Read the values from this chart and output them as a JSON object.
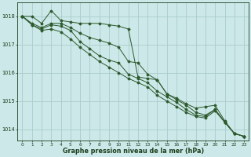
{
  "title": "Graphe pression niveau de la mer (hPa)",
  "background_color": "#cce8e8",
  "grid_color": "#aacccc",
  "line_color": "#2d5a2d",
  "text_color": "#1a3d1a",
  "xlim": [
    -0.5,
    23.5
  ],
  "ylim": [
    1013.6,
    1018.5
  ],
  "yticks": [
    1014,
    1015,
    1016,
    1017,
    1018
  ],
  "xticks": [
    0,
    1,
    2,
    3,
    4,
    5,
    6,
    7,
    8,
    9,
    10,
    11,
    12,
    13,
    14,
    15,
    16,
    17,
    18,
    19,
    20,
    21,
    22,
    23
  ],
  "series": [
    {
      "x": [
        0,
        1,
        2,
        3,
        4,
        5,
        6,
        7,
        8,
        9,
        10,
        11,
        12,
        13,
        14,
        15,
        16,
        17,
        18,
        19,
        20,
        21,
        22,
        23
      ],
      "y": [
        1018.0,
        1018.0,
        1017.75,
        1018.2,
        1017.85,
        1017.8,
        1017.75,
        1017.75,
        1017.75,
        1017.7,
        1017.65,
        1017.55,
        1015.85,
        1015.8,
        1015.75,
        1015.25,
        1015.1,
        1014.9,
        1014.75,
        1014.8,
        1014.85,
        1014.3,
        1013.85,
        1013.75
      ]
    },
    {
      "x": [
        0,
        1,
        2,
        3,
        4,
        5,
        6,
        7,
        8,
        9,
        10,
        11,
        12,
        13,
        14,
        15,
        16,
        17,
        18,
        19,
        20,
        21,
        22,
        23
      ],
      "y": [
        1018.0,
        1017.75,
        1017.6,
        1017.75,
        1017.75,
        1017.6,
        1017.4,
        1017.25,
        1017.15,
        1017.05,
        1016.9,
        1016.4,
        1016.35,
        1015.95,
        1015.75,
        1015.25,
        1015.05,
        1014.85,
        1014.6,
        1014.5,
        1014.7,
        1014.25,
        1013.85,
        1013.75
      ]
    },
    {
      "x": [
        0,
        1,
        2,
        3,
        4,
        5,
        6,
        7,
        8,
        9,
        10,
        11,
        12,
        13,
        14,
        15,
        16,
        17,
        18,
        19,
        20,
        21,
        22,
        23
      ],
      "y": [
        1018.0,
        1017.7,
        1017.55,
        1017.7,
        1017.65,
        1017.5,
        1017.1,
        1016.85,
        1016.6,
        1016.45,
        1016.35,
        1015.95,
        1015.8,
        1015.65,
        1015.35,
        1015.15,
        1014.95,
        1014.7,
        1014.5,
        1014.45,
        1014.7,
        1014.25,
        1013.85,
        1013.75
      ]
    },
    {
      "x": [
        0,
        1,
        2,
        3,
        4,
        5,
        6,
        7,
        8,
        9,
        10,
        11,
        12,
        13,
        14,
        15,
        16,
        17,
        18,
        19,
        20,
        21,
        22,
        23
      ],
      "y": [
        1018.0,
        1017.7,
        1017.5,
        1017.55,
        1017.45,
        1017.2,
        1016.9,
        1016.65,
        1016.4,
        1016.2,
        1016.0,
        1015.8,
        1015.65,
        1015.5,
        1015.2,
        1015.0,
        1014.8,
        1014.6,
        1014.45,
        1014.4,
        1014.65,
        1014.25,
        1013.85,
        1013.75
      ]
    }
  ]
}
